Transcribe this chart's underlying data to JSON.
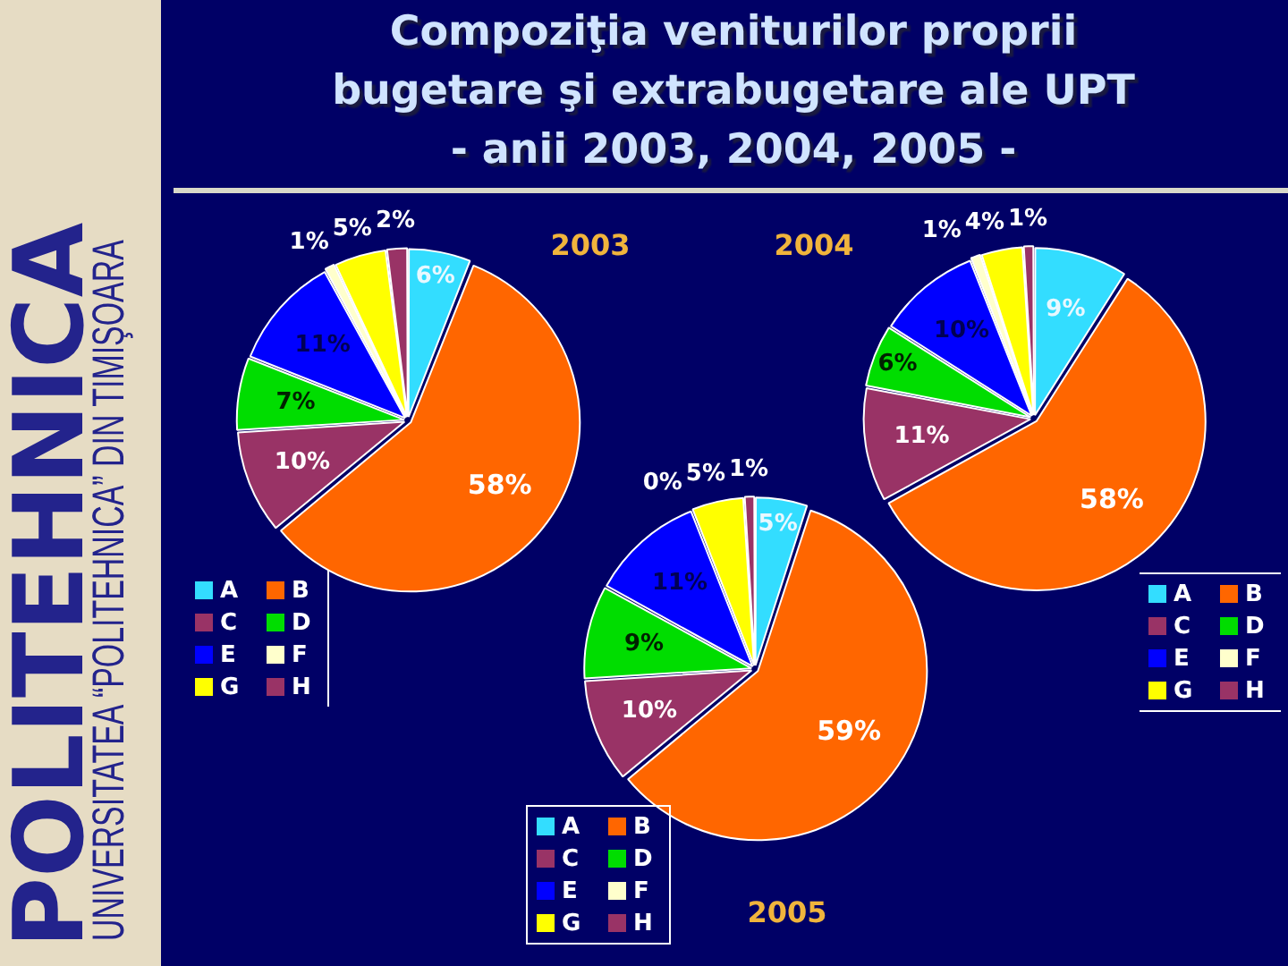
{
  "chart_data": [
    {
      "type": "pie",
      "title": "2003",
      "categories": [
        "A",
        "B",
        "C",
        "D",
        "E",
        "F",
        "G",
        "H"
      ],
      "values": [
        6,
        58,
        10,
        7,
        11,
        1,
        5,
        2
      ],
      "colors": [
        "#33ddff",
        "#ff6600",
        "#993366",
        "#00dd00",
        "#0000ff",
        "#ffffcc",
        "#ffff00",
        "#993366"
      ],
      "value_labels": [
        "6%",
        "58%",
        "10%",
        "7%",
        "11%",
        "1%",
        "5%",
        "2%"
      ],
      "legend": "bottom left",
      "annotations": [
        "Compoziţia veniturilor proprii\nbugetare şi extrabugetare ale UPT\n- anii 2003, 2004, 2005 -",
        "POLITEHNICA",
        "UNIVERSITATEA “POLITEHNICA” DIN TIMIŞOARA"
      ]
    },
    {
      "type": "pie",
      "title": "2004",
      "categories": [
        "A",
        "B",
        "C",
        "D",
        "E",
        "F",
        "G",
        "H"
      ],
      "values": [
        9,
        58,
        11,
        6,
        10,
        1,
        4,
        1
      ],
      "colors": [
        "#33ddff",
        "#ff6600",
        "#993366",
        "#00dd00",
        "#0000ff",
        "#ffffcc",
        "#ffff00",
        "#993366"
      ],
      "value_labels": [
        "9%",
        "58%",
        "11%",
        "6%",
        "10%",
        "1%",
        "4%",
        "1%"
      ],
      "legend": "bottom right"
    },
    {
      "type": "pie",
      "title": "2005",
      "categories": [
        "A",
        "B",
        "C",
        "D",
        "E",
        "F",
        "G",
        "H"
      ],
      "values": [
        5,
        59,
        10,
        9,
        11,
        0,
        5,
        1
      ],
      "colors": [
        "#33ddff",
        "#ff6600",
        "#993366",
        "#00dd00",
        "#0000ff",
        "#ffffcc",
        "#ffff00",
        "#993366"
      ],
      "value_labels": [
        "5%",
        "59%",
        "10%",
        "9%",
        "11%",
        "0%",
        "5%",
        "1%"
      ],
      "legend": "bottom left"
    }
  ]
}
